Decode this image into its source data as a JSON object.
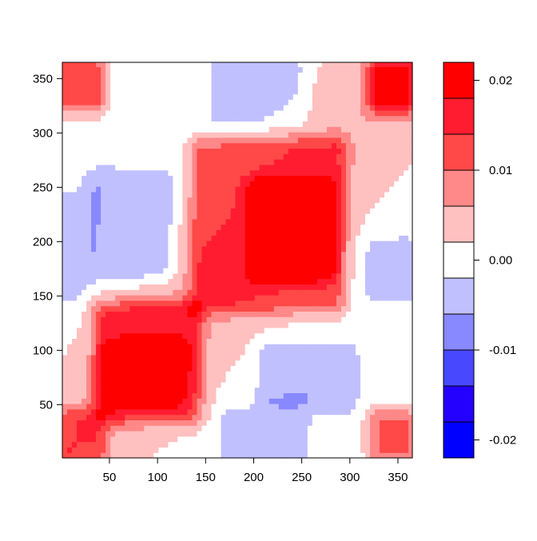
{
  "chart_data": {
    "type": "heatmap",
    "title": "",
    "xlabel": "",
    "ylabel": "",
    "xlim": [
      1,
      365
    ],
    "ylim": [
      1,
      365
    ],
    "x_ticks": [
      50,
      100,
      150,
      200,
      250,
      300,
      350
    ],
    "y_ticks": [
      50,
      100,
      150,
      200,
      250,
      300,
      350
    ],
    "description": "Symmetric day-by-day correlation-style field: positive blocks near the diagonal and in the four corners, weak negative blocks off-diagonal.",
    "field_regions": [
      {
        "x": [
          1,
          40
        ],
        "y": [
          1,
          40
        ],
        "value": 0.009
      },
      {
        "x": [
          325,
          365
        ],
        "y": [
          325,
          365
        ],
        "value": 0.014
      },
      {
        "x": [
          1,
          40
        ],
        "y": [
          325,
          365
        ],
        "value": 0.012
      },
      {
        "x": [
          325,
          365
        ],
        "y": [
          1,
          40
        ],
        "value": 0.01
      },
      {
        "x": [
          40,
          140
        ],
        "y": [
          40,
          140
        ],
        "value": 0.012
      },
      {
        "x": [
          50,
          120
        ],
        "y": [
          60,
          100
        ],
        "value": 0.016
      },
      {
        "x": [
          140,
          290
        ],
        "y": [
          140,
          290
        ],
        "value": 0.01
      },
      {
        "x": [
          200,
          280
        ],
        "y": [
          170,
          250
        ],
        "value": 0.014
      },
      {
        "x": [
          30,
          110
        ],
        "y": [
          170,
          260
        ],
        "value": -0.006
      },
      {
        "x": [
          210,
          300
        ],
        "y": [
          50,
          100
        ],
        "value": -0.006
      },
      {
        "x": [
          170,
          250
        ],
        "y": [
          1,
          40
        ],
        "value": -0.005
      },
      {
        "x": [
          160,
          250
        ],
        "y": [
          310,
          365
        ],
        "value": -0.004
      },
      {
        "x": [
          1,
          20
        ],
        "y": [
          150,
          240
        ],
        "value": -0.004
      },
      {
        "x": [
          320,
          365
        ],
        "y": [
          150,
          200
        ],
        "value": -0.004
      }
    ],
    "colorbar": {
      "breaks": [
        -0.022,
        -0.018,
        -0.014,
        -0.01,
        -0.006,
        -0.002,
        0.002,
        0.006,
        0.01,
        0.014,
        0.018,
        0.022
      ],
      "colors": [
        "#0000FF",
        "#2400FF",
        "#4848FF",
        "#8888FF",
        "#C0C0FF",
        "#FFFFFF",
        "#FFC0C0",
        "#FF8888",
        "#FF4848",
        "#FF1C30",
        "#FF0000"
      ],
      "tick_labels": [
        "-0.02",
        "-0.01",
        "0.00",
        "0.01",
        "0.02"
      ],
      "tick_values": [
        -0.02,
        -0.01,
        0.0,
        0.01,
        0.02
      ]
    }
  }
}
